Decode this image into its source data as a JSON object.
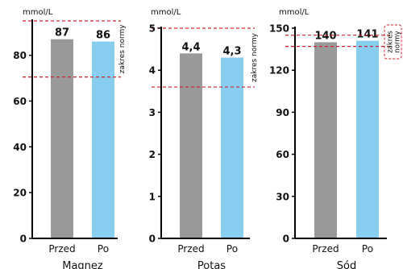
{
  "colors": {
    "before": "#999999",
    "after": "#87cef0",
    "norm_line": "#d0202a",
    "axis": "#000000"
  },
  "chart_data": [
    {
      "type": "bar",
      "unit": "mmol/L",
      "title": "Magnez",
      "categories": [
        "Przed",
        "Po"
      ],
      "values": [
        87,
        86
      ],
      "value_labels": [
        "87",
        "86"
      ],
      "ylim": [
        0,
        95
      ],
      "yticks": [
        0,
        20,
        40,
        60,
        80
      ],
      "norm_range": [
        70.5,
        95
      ],
      "norm_label": "zakres normy",
      "norm_label_boxed": false
    },
    {
      "type": "bar",
      "unit": "mmol/L",
      "title": "Potas",
      "categories": [
        "Przed",
        "Po"
      ],
      "values": [
        4.4,
        4.3
      ],
      "value_labels": [
        "4,4",
        "4,3"
      ],
      "ylim": [
        0,
        5
      ],
      "yticks": [
        0,
        1,
        2,
        3,
        4,
        5
      ],
      "norm_range": [
        3.6,
        5.0
      ],
      "norm_label": "zakres normy",
      "norm_label_boxed": false
    },
    {
      "type": "bar",
      "unit": "mmol/L",
      "title": "Sód",
      "categories": [
        "Przed",
        "Po"
      ],
      "values": [
        140,
        141
      ],
      "value_labels": [
        "140",
        "141"
      ],
      "ylim": [
        0,
        150
      ],
      "yticks": [
        0,
        30,
        60,
        90,
        120,
        150
      ],
      "norm_range": [
        137,
        145
      ],
      "norm_label": "zakres normy",
      "norm_label_boxed": true
    }
  ]
}
